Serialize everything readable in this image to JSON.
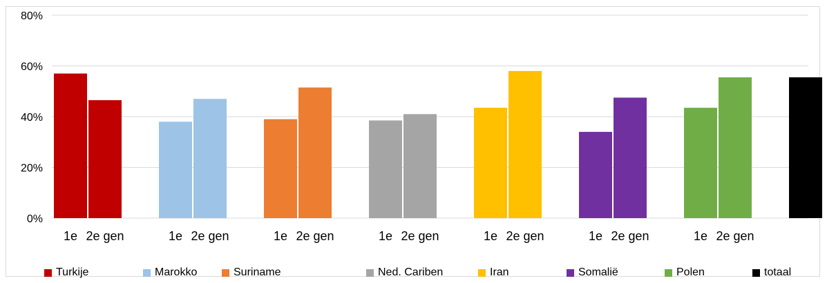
{
  "chart_data": {
    "type": "bar",
    "ylim": [
      0,
      80
    ],
    "ytick_values": [
      0,
      20,
      40,
      60,
      80
    ],
    "ytick_labels": [
      "0%",
      "20%",
      "40%",
      "60%",
      "80%"
    ],
    "grid": true,
    "legend_position": "bottom",
    "groups": [
      {
        "name": "Turkije",
        "color": "#c00000",
        "values": [
          57,
          46.5
        ],
        "tick_labels": [
          "1e",
          "2e gen"
        ]
      },
      {
        "name": "Marokko",
        "color": "#9dc3e6",
        "values": [
          38,
          47
        ],
        "tick_labels": [
          "1e",
          "2e gen"
        ]
      },
      {
        "name": "Suriname",
        "color": "#ed7d31",
        "values": [
          39,
          51.5
        ],
        "tick_labels": [
          "1e",
          "2e gen"
        ]
      },
      {
        "name": "Ned. Cariben",
        "color": "#a5a5a5",
        "values": [
          38.5,
          41
        ],
        "tick_labels": [
          "1e",
          "2e gen"
        ]
      },
      {
        "name": "Iran",
        "color": "#ffc000",
        "values": [
          43.5,
          58
        ],
        "tick_labels": [
          "1e",
          "2e gen"
        ]
      },
      {
        "name": "Somalië",
        "color": "#7030a0",
        "values": [
          34,
          47.5
        ],
        "tick_labels": [
          "1e",
          "2e gen"
        ]
      },
      {
        "name": "Polen",
        "color": "#70ad47",
        "values": [
          43.5,
          55.5
        ],
        "tick_labels": [
          "1e",
          "2e gen"
        ]
      },
      {
        "name": "totaal",
        "color": "#000000",
        "values": [
          55.5
        ],
        "tick_labels": []
      }
    ]
  }
}
